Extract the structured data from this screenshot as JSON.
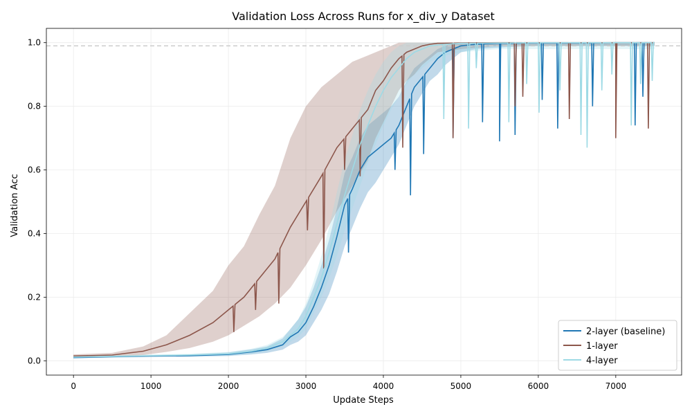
{
  "chart_data": {
    "type": "line",
    "title": "Validation Loss Across Runs for x_div_y Dataset",
    "xlabel": "Update Steps",
    "ylabel": "Validation Acc",
    "xlim": [
      -350,
      7850
    ],
    "ylim": [
      -0.045,
      1.045
    ],
    "xticks": [
      0,
      1000,
      2000,
      3000,
      4000,
      5000,
      6000,
      7000
    ],
    "yticks": [
      0.0,
      0.2,
      0.4,
      0.6,
      0.8,
      1.0
    ],
    "grid": true,
    "legend_position": "lower-right",
    "reference_line": {
      "y": 0.99,
      "style": "dashed",
      "color": "#cccccc"
    },
    "series": [
      {
        "name": "2-layer (baseline)",
        "color": "#1f77b4",
        "x": [
          0,
          500,
          1000,
          1500,
          2000,
          2300,
          2500,
          2700,
          2800,
          2900,
          3000,
          3100,
          3200,
          3300,
          3400,
          3500,
          3600,
          3700,
          3800,
          3900,
          4000,
          4100,
          4200,
          4300,
          4400,
          4500,
          4600,
          4700,
          4800,
          4900,
          5000,
          5200,
          5500,
          6000,
          6500,
          7000,
          7500
        ],
        "y": [
          0.01,
          0.013,
          0.015,
          0.016,
          0.02,
          0.028,
          0.035,
          0.05,
          0.075,
          0.09,
          0.12,
          0.17,
          0.23,
          0.3,
          0.39,
          0.49,
          0.54,
          0.6,
          0.64,
          0.66,
          0.68,
          0.7,
          0.74,
          0.8,
          0.86,
          0.89,
          0.92,
          0.95,
          0.97,
          0.98,
          0.99,
          0.995,
          0.998,
          0.999,
          0.999,
          1.0,
          1.0
        ],
        "lower": [
          0.008,
          0.01,
          0.012,
          0.013,
          0.015,
          0.02,
          0.025,
          0.035,
          0.05,
          0.06,
          0.08,
          0.12,
          0.16,
          0.21,
          0.28,
          0.36,
          0.42,
          0.48,
          0.53,
          0.56,
          0.6,
          0.64,
          0.68,
          0.74,
          0.8,
          0.84,
          0.88,
          0.9,
          0.93,
          0.95,
          0.97,
          0.98,
          0.985,
          0.99,
          0.99,
          0.99,
          0.99
        ],
        "upper": [
          0.012,
          0.016,
          0.018,
          0.02,
          0.026,
          0.036,
          0.045,
          0.07,
          0.1,
          0.13,
          0.17,
          0.23,
          0.3,
          0.38,
          0.48,
          0.59,
          0.64,
          0.7,
          0.74,
          0.76,
          0.78,
          0.8,
          0.83,
          0.88,
          0.92,
          0.94,
          0.96,
          0.98,
          0.99,
          1.0,
          1.0,
          1.0,
          1.0,
          1.0,
          1.0,
          1.0,
          1.0
        ],
        "dips": [
          [
            3550,
            0.34
          ],
          [
            4150,
            0.6
          ],
          [
            4350,
            0.52
          ],
          [
            4520,
            0.65
          ],
          [
            4900,
            0.7
          ],
          [
            5280,
            0.75
          ],
          [
            5500,
            0.69
          ],
          [
            5700,
            0.71
          ],
          [
            6050,
            0.82
          ],
          [
            6250,
            0.73
          ],
          [
            6700,
            0.8
          ],
          [
            7250,
            0.74
          ],
          [
            7350,
            0.83
          ]
        ]
      },
      {
        "name": "1-layer",
        "color": "#8c564b",
        "x": [
          0,
          500,
          900,
          1200,
          1500,
          1800,
          2000,
          2200,
          2400,
          2600,
          2800,
          3000,
          3200,
          3400,
          3600,
          3800,
          3900,
          4000,
          4100,
          4200,
          4300,
          4400,
          4500,
          4600,
          4700,
          5000,
          5500,
          6000,
          6500,
          7000,
          7500
        ],
        "y": [
          0.015,
          0.018,
          0.03,
          0.05,
          0.08,
          0.12,
          0.16,
          0.2,
          0.26,
          0.32,
          0.42,
          0.5,
          0.58,
          0.67,
          0.73,
          0.79,
          0.85,
          0.88,
          0.92,
          0.95,
          0.97,
          0.98,
          0.99,
          0.995,
          0.998,
          0.999,
          1.0,
          1.0,
          1.0,
          1.0,
          1.0
        ],
        "lower": [
          0.01,
          0.012,
          0.018,
          0.028,
          0.04,
          0.06,
          0.08,
          0.11,
          0.14,
          0.18,
          0.23,
          0.3,
          0.38,
          0.47,
          0.55,
          0.63,
          0.7,
          0.75,
          0.8,
          0.85,
          0.88,
          0.9,
          0.93,
          0.95,
          0.97,
          0.98,
          0.99,
          0.99,
          0.99,
          0.99,
          0.99
        ],
        "upper": [
          0.02,
          0.025,
          0.045,
          0.08,
          0.15,
          0.22,
          0.3,
          0.36,
          0.46,
          0.55,
          0.7,
          0.8,
          0.86,
          0.9,
          0.94,
          0.96,
          0.97,
          0.98,
          0.99,
          1.0,
          1.0,
          1.0,
          1.0,
          1.0,
          1.0,
          1.0,
          1.0,
          1.0,
          1.0,
          1.0,
          1.0
        ],
        "dips": [
          [
            2070,
            0.09
          ],
          [
            2350,
            0.16
          ],
          [
            2650,
            0.18
          ],
          [
            3020,
            0.41
          ],
          [
            3230,
            0.29
          ],
          [
            3500,
            0.6
          ],
          [
            3700,
            0.58
          ],
          [
            4250,
            0.67
          ],
          [
            4900,
            0.7
          ],
          [
            5700,
            0.8
          ],
          [
            5800,
            0.83
          ],
          [
            6400,
            0.76
          ],
          [
            7000,
            0.7
          ],
          [
            7420,
            0.73
          ]
        ]
      },
      {
        "name": "4-layer",
        "color": "#9edae5",
        "x": [
          0,
          500,
          1000,
          1500,
          2000,
          2300,
          2500,
          2700,
          2800,
          2900,
          3000,
          3100,
          3200,
          3300,
          3400,
          3500,
          3600,
          3700,
          3800,
          3900,
          4000,
          4100,
          4200,
          4300,
          4400,
          4500,
          4600,
          4800,
          5000,
          5500,
          6000,
          6500,
          7000,
          7500
        ],
        "y": [
          0.012,
          0.014,
          0.016,
          0.018,
          0.022,
          0.03,
          0.04,
          0.06,
          0.08,
          0.1,
          0.14,
          0.2,
          0.26,
          0.34,
          0.43,
          0.52,
          0.6,
          0.68,
          0.74,
          0.8,
          0.85,
          0.89,
          0.92,
          0.95,
          0.97,
          0.98,
          0.99,
          0.995,
          0.998,
          0.999,
          1.0,
          1.0,
          1.0,
          1.0
        ],
        "lower": [
          0.009,
          0.011,
          0.013,
          0.014,
          0.016,
          0.022,
          0.03,
          0.045,
          0.06,
          0.075,
          0.1,
          0.15,
          0.2,
          0.26,
          0.33,
          0.41,
          0.48,
          0.55,
          0.62,
          0.68,
          0.74,
          0.79,
          0.83,
          0.87,
          0.9,
          0.92,
          0.94,
          0.96,
          0.97,
          0.98,
          0.98,
          0.98,
          0.98,
          0.98
        ],
        "upper": [
          0.015,
          0.017,
          0.02,
          0.022,
          0.028,
          0.038,
          0.05,
          0.075,
          0.1,
          0.13,
          0.18,
          0.25,
          0.33,
          0.42,
          0.53,
          0.63,
          0.71,
          0.79,
          0.85,
          0.9,
          0.94,
          0.97,
          0.99,
          1.0,
          1.0,
          1.0,
          1.0,
          1.0,
          1.0,
          1.0,
          1.0,
          1.0,
          1.0,
          1.0
        ],
        "dips": [
          [
            4780,
            0.76
          ],
          [
            5100,
            0.73
          ],
          [
            5200,
            0.92
          ],
          [
            5620,
            0.75
          ],
          [
            5850,
            0.87
          ],
          [
            6010,
            0.78
          ],
          [
            6280,
            0.85
          ],
          [
            6550,
            0.71
          ],
          [
            6630,
            0.67
          ],
          [
            6820,
            0.85
          ],
          [
            6950,
            0.9
          ],
          [
            7200,
            0.74
          ],
          [
            7320,
            0.87
          ],
          [
            7470,
            0.88
          ]
        ]
      }
    ]
  }
}
